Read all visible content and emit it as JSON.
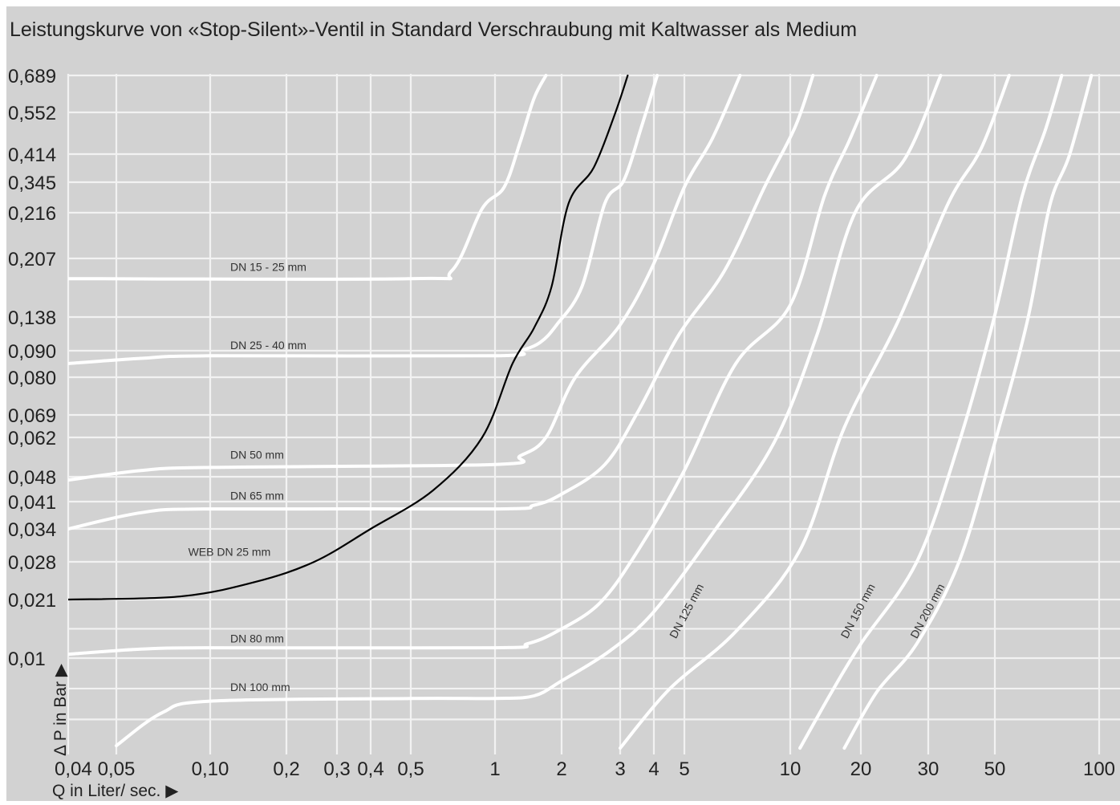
{
  "chart_data": {
    "type": "line",
    "title": "Leistungskurve von «Stop-Silent»-Ventil in Standard  Verschraubung mit Kaltwasser als Medium",
    "xlabel": "Q in Liter/ sec. ▶",
    "ylabel": "Δ P in Bar ▶",
    "x_scale": "log",
    "xlim": [
      0.04,
      100
    ],
    "x_ticks": [
      {
        "value": 0.04,
        "label": "0,04"
      },
      {
        "value": 0.05,
        "label": "0,05"
      },
      {
        "value": 0.1,
        "label": "0,10"
      },
      {
        "value": 0.2,
        "label": "0,2"
      },
      {
        "value": 0.3,
        "label": "0,3"
      },
      {
        "value": 0.4,
        "label": "0,4"
      },
      {
        "value": 0.5,
        "label": "0,5"
      },
      {
        "value": 1,
        "label": "1"
      },
      {
        "value": 2,
        "label": "2"
      },
      {
        "value": 3,
        "label": "3"
      },
      {
        "value": 4,
        "label": "4"
      },
      {
        "value": 5,
        "label": "5"
      },
      {
        "value": 10,
        "label": "10"
      },
      {
        "value": 20,
        "label": "20"
      },
      {
        "value": 30,
        "label": "30"
      },
      {
        "value": 50,
        "label": "50"
      },
      {
        "value": 100,
        "label": "100"
      }
    ],
    "y_ticks": [
      {
        "value": 0.689,
        "label": "0,689"
      },
      {
        "value": 0.552,
        "label": "0,552"
      },
      {
        "value": 0.414,
        "label": "0,414"
      },
      {
        "value": 0.345,
        "label": "0,345"
      },
      {
        "value": 0.216,
        "label": "0,216"
      },
      {
        "value": 0.207,
        "label": "0,207"
      },
      {
        "value": 0.138,
        "label": "0,138"
      },
      {
        "value": 0.09,
        "label": "0,090"
      },
      {
        "value": 0.08,
        "label": "0,080"
      },
      {
        "value": 0.069,
        "label": "0,069"
      },
      {
        "value": 0.062,
        "label": "0,062"
      },
      {
        "value": 0.048,
        "label": "0,048"
      },
      {
        "value": 0.041,
        "label": "0,041"
      },
      {
        "value": 0.034,
        "label": "0,034"
      },
      {
        "value": 0.028,
        "label": "0,028"
      },
      {
        "value": 0.021,
        "label": "0,021"
      },
      {
        "value": 0.01,
        "label": "0,01"
      }
    ],
    "grid": true,
    "series": [
      {
        "name": "DN 15 - 25 mm",
        "color": "#ffffff",
        "points": [
          [
            0.04,
            0.18
          ],
          [
            0.5,
            0.18
          ],
          [
            0.7,
            0.19
          ],
          [
            0.9,
            0.23
          ],
          [
            1.1,
            0.32
          ],
          [
            1.3,
            0.45
          ],
          [
            1.5,
            0.6
          ],
          [
            1.7,
            0.689
          ]
        ]
      },
      {
        "name": "DN 25 - 40 mm",
        "color": "#ffffff",
        "points": [
          [
            0.04,
            0.085
          ],
          [
            0.06,
            0.087
          ],
          [
            0.1,
            0.088
          ],
          [
            1.0,
            0.088
          ],
          [
            1.3,
            0.09
          ],
          [
            1.6,
            0.1
          ],
          [
            1.9,
            0.125
          ],
          [
            2.3,
            0.17
          ],
          [
            2.7,
            0.25
          ],
          [
            3.1,
            0.35
          ],
          [
            3.6,
            0.5
          ],
          [
            4.1,
            0.689
          ]
        ]
      },
      {
        "name": "DN 50 mm",
        "color": "#ffffff",
        "points": [
          [
            0.04,
            0.047
          ],
          [
            0.06,
            0.05
          ],
          [
            0.1,
            0.051
          ],
          [
            1.0,
            0.052
          ],
          [
            1.3,
            0.055
          ],
          [
            1.7,
            0.062
          ],
          [
            2.2,
            0.08
          ],
          [
            3.0,
            0.125
          ],
          [
            4.0,
            0.2
          ],
          [
            5.0,
            0.32
          ],
          [
            6.0,
            0.46
          ],
          [
            7.2,
            0.689
          ]
        ]
      },
      {
        "name": "DN 65 mm",
        "color": "#ffffff",
        "points": [
          [
            0.04,
            0.034
          ],
          [
            0.06,
            0.038
          ],
          [
            0.1,
            0.039
          ],
          [
            1.0,
            0.039
          ],
          [
            1.5,
            0.04
          ],
          [
            2.0,
            0.043
          ],
          [
            2.7,
            0.052
          ],
          [
            3.5,
            0.07
          ],
          [
            4.8,
            0.11
          ],
          [
            6.5,
            0.19
          ],
          [
            8.5,
            0.33
          ],
          [
            10.5,
            0.5
          ],
          [
            12.5,
            0.689
          ]
        ]
      },
      {
        "name": "DN 80 mm",
        "color": "#ffffff",
        "points": [
          [
            0.04,
            0.0105
          ],
          [
            0.06,
            0.0112
          ],
          [
            0.1,
            0.0114
          ],
          [
            1.0,
            0.0114
          ],
          [
            1.4,
            0.012
          ],
          [
            1.9,
            0.014
          ],
          [
            2.6,
            0.02
          ],
          [
            3.5,
            0.03
          ],
          [
            5.0,
            0.05
          ],
          [
            7.0,
            0.085
          ],
          [
            10,
            0.15
          ],
          [
            14,
            0.28
          ],
          [
            18,
            0.46
          ],
          [
            22,
            0.689
          ]
        ]
      },
      {
        "name": "DN 100 mm",
        "color": "#ffffff",
        "points": [
          [
            0.05,
            0.0033
          ],
          [
            0.07,
            0.005
          ],
          [
            0.1,
            0.0058
          ],
          [
            0.5,
            0.006
          ],
          [
            1.0,
            0.006
          ],
          [
            1.5,
            0.0062
          ],
          [
            2.0,
            0.0075
          ],
          [
            2.8,
            0.011
          ],
          [
            4.0,
            0.018
          ],
          [
            6.0,
            0.033
          ],
          [
            9,
            0.06
          ],
          [
            13,
            0.11
          ],
          [
            19,
            0.22
          ],
          [
            26,
            0.4
          ],
          [
            33,
            0.689
          ]
        ]
      },
      {
        "name": "DN 125 mm",
        "color": "#ffffff",
        "points": [
          [
            3.0,
            0.0032
          ],
          [
            4.5,
            0.0068
          ],
          [
            7,
            0.014
          ],
          [
            11,
            0.03
          ],
          [
            17,
            0.065
          ],
          [
            25,
            0.13
          ],
          [
            35,
            0.25
          ],
          [
            45,
            0.43
          ],
          [
            55,
            0.689
          ]
        ]
      },
      {
        "name": "DN 150 mm",
        "color": "#ffffff",
        "points": [
          [
            11,
            0.0032
          ],
          [
            15,
            0.0065
          ],
          [
            20,
            0.012
          ],
          [
            28,
            0.028
          ],
          [
            38,
            0.06
          ],
          [
            50,
            0.14
          ],
          [
            60,
            0.28
          ],
          [
            70,
            0.49
          ],
          [
            78,
            0.689
          ]
        ]
      },
      {
        "name": "DN 200 mm",
        "color": "#ffffff",
        "points": [
          [
            17,
            0.0032
          ],
          [
            22,
            0.0065
          ],
          [
            28,
            0.012
          ],
          [
            38,
            0.028
          ],
          [
            50,
            0.06
          ],
          [
            62,
            0.13
          ],
          [
            72,
            0.24
          ],
          [
            82,
            0.41
          ],
          [
            95,
            0.689
          ]
        ]
      },
      {
        "name": "WEB DN 25 mm",
        "color": "#000000",
        "points": [
          [
            0.04,
            0.021
          ],
          [
            0.08,
            0.0215
          ],
          [
            0.15,
            0.024
          ],
          [
            0.25,
            0.028
          ],
          [
            0.4,
            0.034
          ],
          [
            0.6,
            0.044
          ],
          [
            0.9,
            0.062
          ],
          [
            1.2,
            0.085
          ],
          [
            1.5,
            0.12
          ],
          [
            1.8,
            0.17
          ],
          [
            2.1,
            0.25
          ],
          [
            2.5,
            0.38
          ],
          [
            2.9,
            0.55
          ],
          [
            3.2,
            0.689
          ]
        ]
      }
    ],
    "annotations": [
      {
        "text": "DN 15 - 25 mm",
        "x": 0.12,
        "y": 0.19,
        "angle": 0
      },
      {
        "text": "DN 25 - 40 mm",
        "x": 0.12,
        "y": 0.092,
        "angle": 0
      },
      {
        "text": "DN 50 mm",
        "x": 0.12,
        "y": 0.054,
        "angle": 0
      },
      {
        "text": "DN 65 mm",
        "x": 0.12,
        "y": 0.0415,
        "angle": 0
      },
      {
        "text": "WEB DN 25 mm",
        "x": 0.085,
        "y": 0.029,
        "angle": 0
      },
      {
        "text": "DN 80 mm",
        "x": 0.12,
        "y": 0.0122,
        "angle": 0
      },
      {
        "text": "DN 100 mm",
        "x": 0.12,
        "y": 0.0066,
        "angle": 0
      },
      {
        "text": "DN 125 mm",
        "x": 4.7,
        "y": 0.0127,
        "angle": -62
      },
      {
        "text": "DN 150 mm",
        "x": 17.5,
        "y": 0.0127,
        "angle": -62
      },
      {
        "text": "DN 200 mm",
        "x": 28,
        "y": 0.0127,
        "angle": -62
      }
    ],
    "colors": {
      "background": "#d2d2d2",
      "grid": "#f2f2f2",
      "curves": "#ffffff",
      "highlight_curve": "#000000",
      "text": "#222222"
    }
  }
}
